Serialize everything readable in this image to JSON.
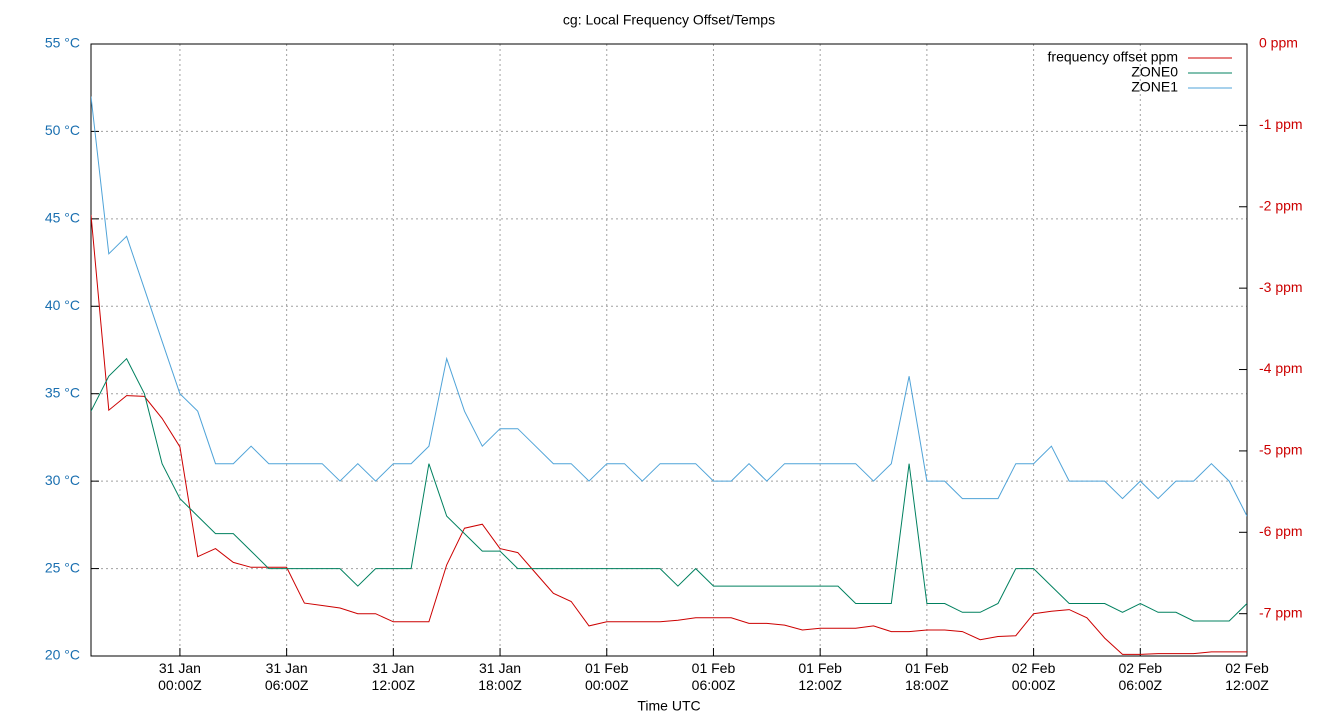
{
  "chart_data": {
    "type": "line",
    "title": "cg: Local Frequency Offset/Temps",
    "x_label": "Time UTC",
    "x": [
      "30 Jan 19:00Z",
      "30 Jan 20:00Z",
      "30 Jan 21:00Z",
      "30 Jan 22:00Z",
      "30 Jan 23:00Z",
      "31 Jan 00:00Z",
      "31 Jan 01:00Z",
      "31 Jan 02:00Z",
      "31 Jan 03:00Z",
      "31 Jan 04:00Z",
      "31 Jan 05:00Z",
      "31 Jan 06:00Z",
      "31 Jan 07:00Z",
      "31 Jan 08:00Z",
      "31 Jan 09:00Z",
      "31 Jan 10:00Z",
      "31 Jan 11:00Z",
      "31 Jan 12:00Z",
      "31 Jan 13:00Z",
      "31 Jan 14:00Z",
      "31 Jan 15:00Z",
      "31 Jan 16:00Z",
      "31 Jan 17:00Z",
      "31 Jan 18:00Z",
      "31 Jan 19:00Z",
      "31 Jan 20:00Z",
      "31 Jan 21:00Z",
      "31 Jan 22:00Z",
      "31 Jan 23:00Z",
      "01 Feb 00:00Z",
      "01 Feb 01:00Z",
      "01 Feb 02:00Z",
      "01 Feb 03:00Z",
      "01 Feb 04:00Z",
      "01 Feb 05:00Z",
      "01 Feb 06:00Z",
      "01 Feb 07:00Z",
      "01 Feb 08:00Z",
      "01 Feb 09:00Z",
      "01 Feb 10:00Z",
      "01 Feb 11:00Z",
      "01 Feb 12:00Z",
      "01 Feb 13:00Z",
      "01 Feb 14:00Z",
      "01 Feb 15:00Z",
      "01 Feb 16:00Z",
      "01 Feb 17:00Z",
      "01 Feb 18:00Z",
      "01 Feb 19:00Z",
      "01 Feb 20:00Z",
      "01 Feb 21:00Z",
      "01 Feb 22:00Z",
      "01 Feb 23:00Z",
      "02 Feb 00:00Z",
      "02 Feb 01:00Z",
      "02 Feb 02:00Z",
      "02 Feb 03:00Z",
      "02 Feb 04:00Z",
      "02 Feb 05:00Z",
      "02 Feb 06:00Z",
      "02 Feb 07:00Z",
      "02 Feb 08:00Z",
      "02 Feb 09:00Z",
      "02 Feb 10:00Z",
      "02 Feb 11:00Z",
      "02 Feb 12:00Z"
    ],
    "xlim": [
      "30 Jan 19:00Z",
      "02 Feb 12:00Z"
    ],
    "xticks": [
      "31 Jan 00:00Z",
      "31 Jan 06:00Z",
      "31 Jan 12:00Z",
      "31 Jan 18:00Z",
      "01 Feb 00:00Z",
      "01 Feb 06:00Z",
      "01 Feb 12:00Z",
      "01 Feb 18:00Z",
      "02 Feb 00:00Z",
      "02 Feb 06:00Z",
      "02 Feb 12:00Z"
    ],
    "ylim": [
      20,
      55
    ],
    "yticks": [
      {
        "value": 20,
        "label": "20 °C"
      },
      {
        "value": 25,
        "label": "25 °C"
      },
      {
        "value": 30,
        "label": "30 °C"
      },
      {
        "value": 35,
        "label": "35 °C"
      },
      {
        "value": 40,
        "label": "40 °C"
      },
      {
        "value": 45,
        "label": "45 °C"
      },
      {
        "value": 50,
        "label": "50 °C"
      },
      {
        "value": 55,
        "label": "55 °C"
      }
    ],
    "y_color": "#1a6fb0",
    "y2lim": [
      -7.52,
      0
    ],
    "y2ticks": [
      {
        "value": 0,
        "label": "0 ppm"
      },
      {
        "value": -1,
        "label": "-1 ppm"
      },
      {
        "value": -2,
        "label": "-2 ppm"
      },
      {
        "value": -3,
        "label": "-3 ppm"
      },
      {
        "value": -4,
        "label": "-4 ppm"
      },
      {
        "value": -5,
        "label": "-5 ppm"
      },
      {
        "value": -6,
        "label": "-6 ppm"
      },
      {
        "value": -7,
        "label": "-7 ppm"
      }
    ],
    "y2_color": "#cc0000",
    "grid": true,
    "legend": "top-right",
    "series": [
      {
        "name": "frequency offset ppm",
        "color": "#cc0000",
        "axis": "y2",
        "values": [
          -2.1,
          -4.5,
          -4.32,
          -4.33,
          -4.6,
          -4.95,
          -6.3,
          -6.2,
          -6.37,
          -6.43,
          -6.43,
          -6.43,
          -6.87,
          -6.9,
          -6.93,
          -7.0,
          -7.0,
          -7.1,
          -7.1,
          -7.1,
          -6.4,
          -5.95,
          -5.9,
          -6.2,
          -6.25,
          -6.5,
          -6.75,
          -6.85,
          -7.15,
          -7.1,
          -7.1,
          -7.1,
          -7.1,
          -7.08,
          -7.05,
          -7.05,
          -7.05,
          -7.12,
          -7.12,
          -7.14,
          -7.2,
          -7.18,
          -7.18,
          -7.18,
          -7.15,
          -7.22,
          -7.22,
          -7.2,
          -7.2,
          -7.22,
          -7.32,
          -7.28,
          -7.27,
          -7.0,
          -6.97,
          -6.95,
          -7.05,
          -7.3,
          -7.5,
          -7.5,
          -7.49,
          -7.49,
          -7.49,
          -7.47,
          -7.47,
          -7.47
        ]
      },
      {
        "name": "ZONE0",
        "color": "#00805f",
        "values": [
          34,
          36,
          37,
          35,
          31,
          29,
          28,
          27,
          27,
          26,
          25,
          25,
          25,
          25,
          25,
          24,
          25,
          25,
          25,
          31,
          28,
          27,
          26,
          26,
          25,
          25,
          25,
          25,
          25,
          25,
          25,
          25,
          25,
          24,
          25,
          24,
          24,
          24,
          24,
          24,
          24,
          24,
          24,
          23,
          23,
          23,
          31,
          23,
          23,
          22.5,
          22.5,
          23,
          25,
          25,
          24,
          23,
          23,
          23,
          22.5,
          23,
          22.5,
          22.5,
          22,
          22,
          22,
          23
        ]
      },
      {
        "name": "ZONE1",
        "color": "#4fa3d8",
        "values": [
          52,
          43,
          44,
          41,
          38,
          35,
          34,
          31,
          31,
          32,
          31,
          31,
          31,
          31,
          30,
          31,
          30,
          31,
          31,
          32,
          37,
          34,
          32,
          33,
          33,
          32,
          31,
          31,
          30,
          31,
          31,
          30,
          31,
          31,
          31,
          30,
          30,
          31,
          30,
          31,
          31,
          31,
          31,
          31,
          30,
          31,
          36,
          30,
          30,
          29,
          29,
          29,
          31,
          31,
          32,
          30,
          30,
          30,
          29,
          30,
          29,
          30,
          30,
          31,
          30,
          28
        ]
      }
    ]
  }
}
